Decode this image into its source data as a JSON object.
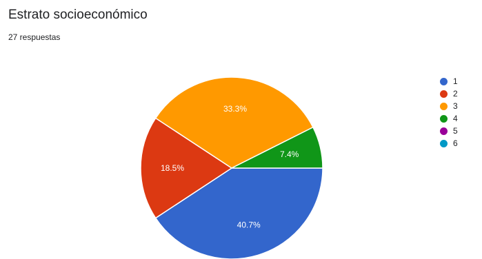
{
  "header": {
    "title": "Estrato socioeconómico",
    "subtitle": "27 respuestas"
  },
  "chart_data": {
    "type": "pie",
    "title": "Estrato socioeconómico",
    "subtitle": "27 respuestas",
    "total_responses": 27,
    "categories": [
      "1",
      "2",
      "3",
      "4",
      "5",
      "6"
    ],
    "values": [
      11,
      5,
      9,
      2,
      0,
      0
    ],
    "percentages": [
      40.7,
      18.5,
      33.3,
      7.4,
      0,
      0
    ],
    "slice_labels": [
      "40.7%",
      "18.5%",
      "33.3%",
      "7.4%",
      "",
      ""
    ],
    "colors": [
      "#3366cc",
      "#dc3912",
      "#ff9900",
      "#109618",
      "#990099",
      "#0099c6"
    ],
    "legend_position": "right",
    "start_angle_deg": 90,
    "direction": "clockwise"
  }
}
